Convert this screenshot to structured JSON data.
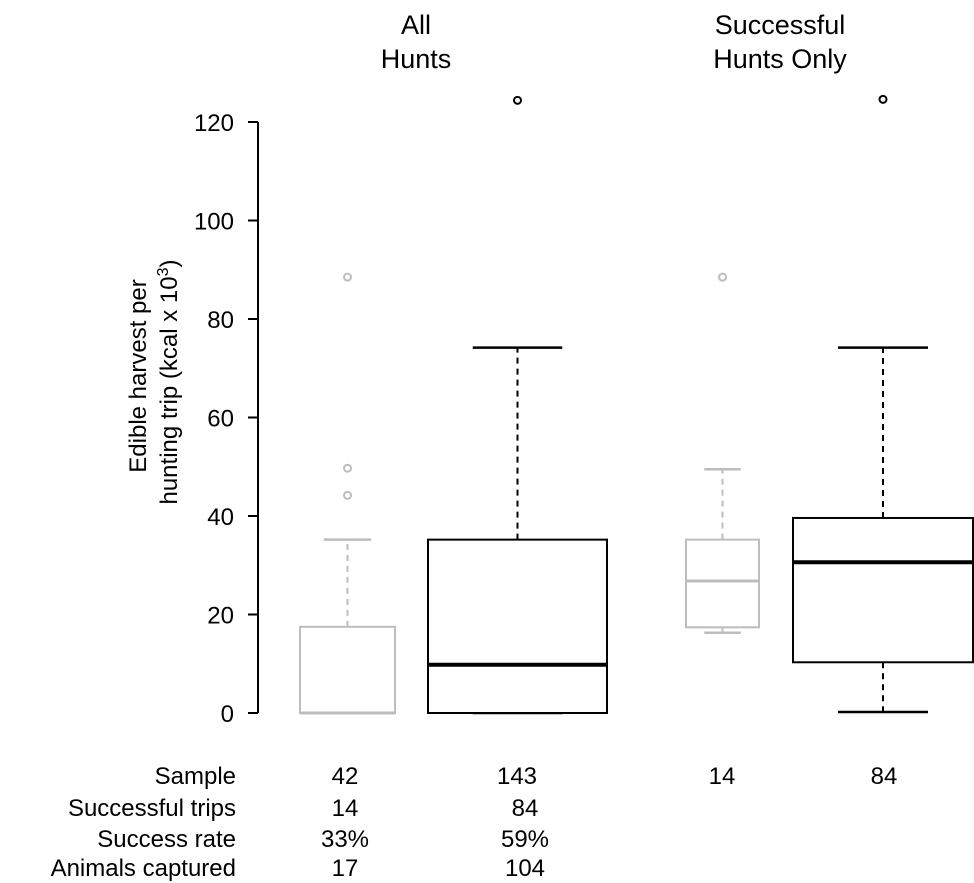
{
  "chart_data": {
    "type": "box",
    "panels": [
      {
        "title_lines": [
          "All",
          "Hunts"
        ]
      },
      {
        "title_lines": [
          "Successful",
          "Hunts Only"
        ]
      }
    ],
    "ylabel_lines": [
      "Edible harvest per",
      "hunting trip (kcal x 10",
      "3",
      ")"
    ],
    "ylim": [
      0,
      120
    ],
    "yticks": [
      0,
      20,
      40,
      60,
      80,
      100,
      120
    ],
    "grid": false,
    "series_colors": {
      "gray": "#bdbdbd",
      "black": "#000000"
    },
    "boxes": [
      {
        "panel": 0,
        "color": "gray",
        "whisker_low": 0,
        "q1": 0,
        "median": 0,
        "q3": 17.5,
        "whisker_high": 35.2,
        "outliers": [
          44.2,
          49.7,
          88.5
        ]
      },
      {
        "panel": 0,
        "color": "black",
        "whisker_low": 0,
        "q1": 0,
        "median": 9.8,
        "q3": 35.2,
        "whisker_high": 74.2,
        "outliers": [
          124.4
        ]
      },
      {
        "panel": 1,
        "color": "gray",
        "whisker_low": 16.3,
        "q1": 17.4,
        "median": 26.8,
        "q3": 35.2,
        "whisker_high": 49.5,
        "outliers": [
          88.5
        ]
      },
      {
        "panel": 1,
        "color": "black",
        "whisker_low": 0.2,
        "q1": 10.3,
        "median": 30.6,
        "q3": 39.6,
        "whisker_high": 74.2,
        "outliers": [
          124.6
        ]
      }
    ],
    "table": {
      "row_labels": [
        "Sample",
        "Successful trips",
        "Success rate",
        "Animals captured"
      ],
      "columns": [
        [
          "42",
          "14",
          "33%",
          "17"
        ],
        [
          "143",
          "84",
          "59%",
          "104"
        ],
        [
          "14",
          "",
          "",
          ""
        ],
        [
          "84",
          "",
          "",
          ""
        ]
      ]
    }
  }
}
